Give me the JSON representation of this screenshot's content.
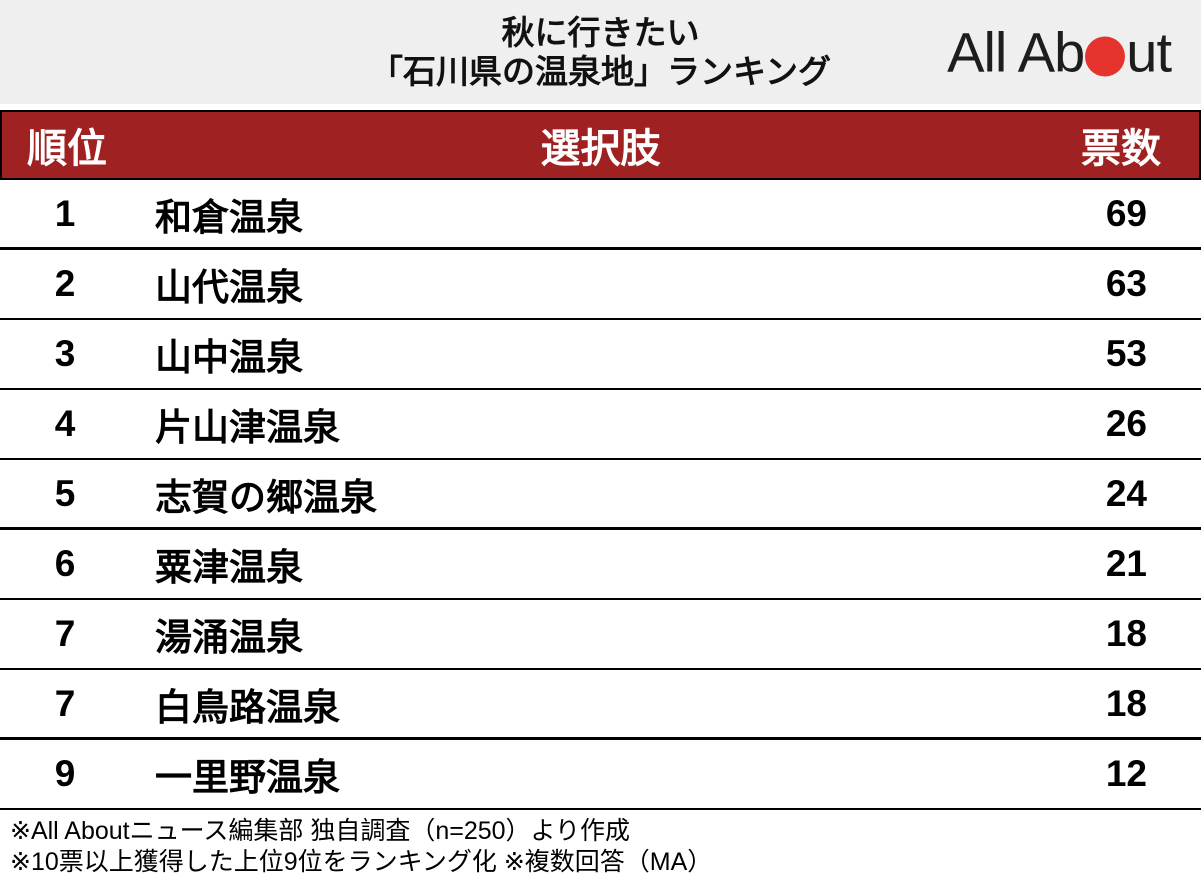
{
  "header": {
    "title_line1": "秋に行きたい",
    "title_line2": "「石川県の温泉地」ランキング",
    "logo": {
      "text_before_dot": "All Ab",
      "text_after_dot": "ut",
      "dot_icon": "red-circle-icon",
      "dot_color": "#e5332e",
      "text_color": "#1d1d1b"
    }
  },
  "table": {
    "columns": {
      "rank": "順位",
      "choice": "選択肢",
      "votes": "票数"
    },
    "rows": [
      {
        "rank": "1",
        "choice": "和倉温泉",
        "votes": "69",
        "thick_divider": true
      },
      {
        "rank": "2",
        "choice": "山代温泉",
        "votes": "63",
        "thick_divider": false
      },
      {
        "rank": "3",
        "choice": "山中温泉",
        "votes": "53",
        "thick_divider": false
      },
      {
        "rank": "4",
        "choice": "片山津温泉",
        "votes": "26",
        "thick_divider": false
      },
      {
        "rank": "5",
        "choice": "志賀の郷温泉",
        "votes": "24",
        "thick_divider": true
      },
      {
        "rank": "6",
        "choice": "粟津温泉",
        "votes": "21",
        "thick_divider": false
      },
      {
        "rank": "7",
        "choice": "湯涌温泉",
        "votes": "18",
        "thick_divider": false
      },
      {
        "rank": "7",
        "choice": "白鳥路温泉",
        "votes": "18",
        "thick_divider": true
      },
      {
        "rank": "9",
        "choice": "一里野温泉",
        "votes": "12",
        "thick_divider": false
      }
    ]
  },
  "footnotes": {
    "line1": "※All Aboutニュース編集部 独自調査（n=250）より作成",
    "line2": "※10票以上獲得した上位9位をランキング化 ※複数回答（MA）"
  },
  "colors": {
    "header_red": "#a02122",
    "band_gray": "#efefef",
    "border_black": "#000000",
    "logo_red": "#e5332e"
  },
  "chart_data": {
    "type": "table",
    "title": "秋に行きたい「石川県の温泉地」ランキング",
    "columns": [
      "順位",
      "選択肢",
      "票数"
    ],
    "rows": [
      [
        1,
        "和倉温泉",
        69
      ],
      [
        2,
        "山代温泉",
        63
      ],
      [
        3,
        "山中温泉",
        53
      ],
      [
        4,
        "片山津温泉",
        26
      ],
      [
        5,
        "志賀の郷温泉",
        24
      ],
      [
        6,
        "粟津温泉",
        21
      ],
      [
        7,
        "湯涌温泉",
        18
      ],
      [
        7,
        "白鳥路温泉",
        18
      ],
      [
        9,
        "一里野温泉",
        12
      ]
    ],
    "source_note": "All Aboutニュース編集部 独自調査（n=250）より作成",
    "method_note": "10票以上獲得した上位9位をランキング化、複数回答（MA）"
  }
}
